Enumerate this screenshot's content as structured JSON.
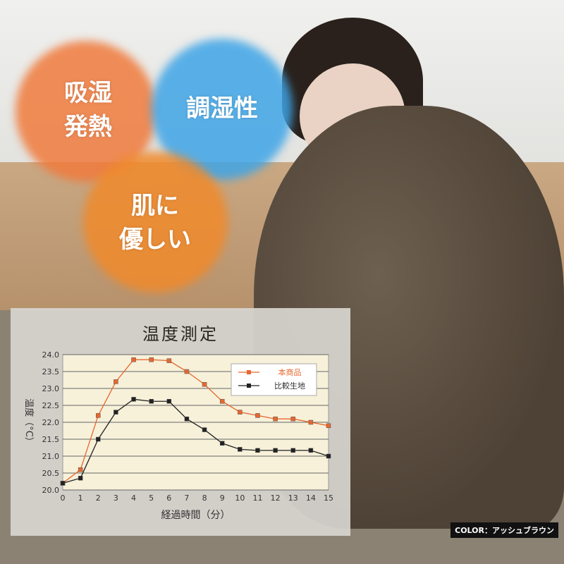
{
  "badges": [
    {
      "text": "吸湿\n発熱",
      "color": "#f07a3c"
    },
    {
      "text": "調湿性",
      "color": "#3ea4e6"
    },
    {
      "text": "肌に\n優しい",
      "color": "#f08a2c"
    }
  ],
  "color_label": "COLOR：アッシュブラウン",
  "chart_data": {
    "type": "line",
    "title": "温度測定",
    "xlabel": "経過時間（分）",
    "ylabel": "温度（°C）",
    "x": [
      0,
      1,
      2,
      3,
      4,
      5,
      6,
      7,
      8,
      9,
      10,
      11,
      12,
      13,
      14,
      15
    ],
    "ylim": [
      20.0,
      24.0
    ],
    "yticks": [
      "20.0",
      "20.5",
      "21.0",
      "21.5",
      "22.0",
      "22.5",
      "23.0",
      "23.5",
      "24.0"
    ],
    "grid": true,
    "legend": "top-right",
    "series": [
      {
        "name": "本商品",
        "color": "#e8672e",
        "values": [
          20.2,
          20.6,
          22.2,
          23.2,
          23.85,
          23.85,
          23.82,
          23.5,
          23.12,
          22.62,
          22.3,
          22.2,
          22.1,
          22.1,
          22.0,
          21.9
        ]
      },
      {
        "name": "比較生地",
        "color": "#222222",
        "values": [
          20.2,
          20.35,
          21.5,
          22.3,
          22.68,
          22.62,
          22.62,
          22.1,
          21.78,
          21.38,
          21.2,
          21.17,
          21.17,
          21.17,
          21.17,
          21.0
        ]
      }
    ]
  }
}
